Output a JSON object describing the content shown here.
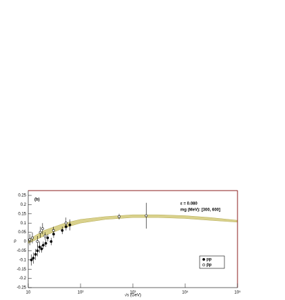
{
  "chart_data": {
    "type": "errorbar-scatter",
    "panel_label": "(b)",
    "annotations": [
      "ε = 0.080",
      "mg (MeV): [300, 600]"
    ],
    "xlabel": "√s (GeV)",
    "ylabel": "ρ",
    "xscale": "log",
    "xlim": [
      10,
      100000
    ],
    "xticks": [
      {
        "value": 10,
        "label": "10"
      },
      {
        "value": 100,
        "label": "10²"
      },
      {
        "value": 1000,
        "label": "10³"
      },
      {
        "value": 10000,
        "label": "10⁴"
      },
      {
        "value": 100000,
        "label": "10⁵"
      }
    ],
    "ylim": [
      -0.25,
      0.25
    ],
    "yticks": [
      -0.25,
      -0.2,
      -0.15,
      -0.1,
      -0.05,
      0,
      0.05,
      0.1,
      0.15,
      0.2,
      0.25
    ],
    "band": {
      "color": "#d9d18c",
      "x": [
        10,
        20,
        50,
        100,
        300,
        1000,
        3000,
        10000,
        30000,
        100000
      ],
      "lower": [
        -0.01,
        0.03,
        0.075,
        0.1,
        0.12,
        0.13,
        0.13,
        0.125,
        0.115,
        0.105
      ],
      "upper": [
        0.01,
        0.06,
        0.1,
        0.12,
        0.135,
        0.145,
        0.145,
        0.14,
        0.13,
        0.115
      ]
    },
    "series": [
      {
        "name": "pp",
        "marker": "filled",
        "color": "#000000",
        "x": [
          11.5,
          12.5,
          13.8,
          15,
          16.5,
          18,
          19.4,
          21.7,
          23.5,
          27.4,
          30.6,
          44.7,
          52.8,
          62.5
        ],
        "values": [
          -0.1,
          -0.09,
          -0.07,
          -0.05,
          -0.03,
          -0.04,
          -0.02,
          -0.01,
          0.02,
          0,
          0.04,
          0.06,
          0.08,
          0.09
        ],
        "errors": [
          0.03,
          0.03,
          0.03,
          0.03,
          0.03,
          0.02,
          0.02,
          0.02,
          0.02,
          0.02,
          0.02,
          0.02,
          0.02,
          0.03
        ]
      },
      {
        "name": "p̄p",
        "marker": "open",
        "color": "#000000",
        "x": [
          10.7,
          12,
          15,
          17,
          18.8,
          21,
          30.4,
          52.6,
          546,
          1800
        ],
        "values": [
          0.01,
          0.02,
          0,
          0.05,
          0.07,
          0.03,
          0.06,
          0.1,
          0.135,
          0.14
        ],
        "errors": [
          0.03,
          0.03,
          0.03,
          0.03,
          0.03,
          0.02,
          0.02,
          0.03,
          0.015,
          0.07
        ]
      }
    ]
  }
}
